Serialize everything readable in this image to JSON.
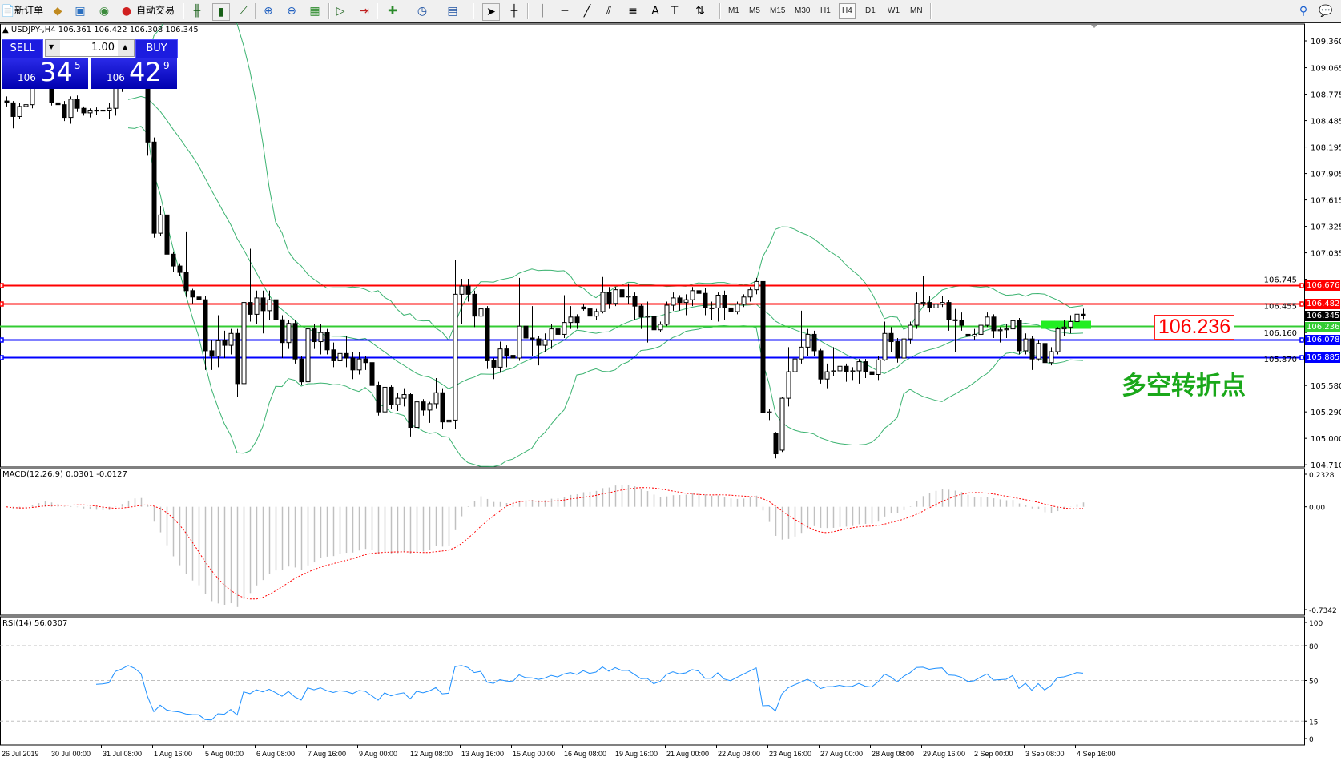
{
  "toolbar": {
    "new_order": "新订单",
    "auto_trading": "自动交易",
    "timeframes": [
      "M1",
      "M5",
      "M15",
      "M30",
      "H1",
      "H4",
      "D1",
      "W1",
      "MN"
    ],
    "active_timeframe": "H4",
    "icons": [
      "new-order-icon",
      "market-watch-icon",
      "navigator-icon",
      "signals-icon",
      "auto-trading-icon",
      "bar-chart-icon",
      "candlestick-icon",
      "line-chart-icon",
      "zoom-in-icon",
      "zoom-out-icon",
      "tile-windows-icon",
      "autoscroll-icon",
      "chart-shift-icon",
      "indicators-icon",
      "periods-icon",
      "templates-icon",
      "cursor-icon",
      "crosshair-icon",
      "vertical-line-icon",
      "horizontal-line-icon",
      "trendline-icon",
      "equidistant-channel-icon",
      "fibonacci-icon",
      "text-icon",
      "text-label-icon",
      "arrows-icon",
      "search-icon",
      "chat-icon"
    ]
  },
  "chart": {
    "header": "USDJPY-,H4  106.361 106.422 106.308 106.345",
    "trade_panel": {
      "sell_label": "SELL",
      "buy_label": "BUY",
      "volume": "1.00",
      "sell_price": {
        "prefix": "106",
        "big": "34",
        "sup": "5"
      },
      "buy_price": {
        "prefix": "106",
        "big": "42",
        "sup": "9"
      }
    },
    "annotation_price": "106.236",
    "annotation_text": "多空转折点",
    "macd_label": "MACD(12,26,9) 0.0301 -0.0127",
    "rsi_label": "RSI(14) 56.0307"
  },
  "colors": {
    "bull": "#ffffff",
    "bear": "#000000",
    "bands": "#3cb371",
    "macd_hist": "#c0c0c0",
    "macd_signal": "#ff0000",
    "rsi": "#1e90ff",
    "resistance": "#ff0000",
    "pivot": "#33cc33",
    "support": "#0000ff",
    "bid": "#c0c0c0",
    "pivot_zone": "#22ee22"
  },
  "chart_data": {
    "type": "candlestick",
    "symbol": "USDJPY-",
    "timeframe": "H4",
    "ylim": [
      104.71,
      109.36
    ],
    "price_ticks": [
      "109.360",
      "109.065",
      "108.775",
      "108.485",
      "108.195",
      "107.905",
      "107.615",
      "107.325",
      "107.035",
      "106.745",
      "106.455",
      "106.160",
      "105.870",
      "105.580",
      "105.290",
      "105.000",
      "104.710"
    ],
    "time_ticks": [
      "26 Jul 2019",
      "30 Jul 00:00",
      "31 Jul 08:00",
      "1 Aug 16:00",
      "5 Aug 00:00",
      "6 Aug 08:00",
      "7 Aug 16:00",
      "9 Aug 00:00",
      "12 Aug 08:00",
      "13 Aug 16:00",
      "15 Aug 00:00",
      "16 Aug 08:00",
      "19 Aug 16:00",
      "21 Aug 00:00",
      "22 Aug 08:00",
      "23 Aug 16:00",
      "27 Aug 00:00",
      "28 Aug 08:00",
      "29 Aug 16:00",
      "2 Sep 00:00",
      "3 Sep 08:00",
      "4 Sep 16:00"
    ],
    "hlines": [
      {
        "price": 106.676,
        "label": "106.676",
        "color": "#ff0000",
        "style": "resistance"
      },
      {
        "price": 106.482,
        "label": "106.482",
        "color": "#ff0000",
        "style": "resistance"
      },
      {
        "price": 106.345,
        "label": "106.345",
        "color": "#000000",
        "style": "bid"
      },
      {
        "price": 106.236,
        "label": "106.236",
        "color": "#33cc33",
        "style": "pivot"
      },
      {
        "price": 106.078,
        "label": "106.078",
        "color": "#0000ff",
        "style": "support"
      },
      {
        "price": 105.885,
        "label": "105.885",
        "color": "#0000ff",
        "style": "support"
      }
    ],
    "candles": [
      [
        108.7,
        108.75,
        108.64,
        108.68
      ],
      [
        108.68,
        108.7,
        108.4,
        108.53
      ],
      [
        108.53,
        108.68,
        108.5,
        108.64
      ],
      [
        108.64,
        108.7,
        108.58,
        108.66
      ],
      [
        108.66,
        108.96,
        108.62,
        108.92
      ],
      [
        108.92,
        108.98,
        108.86,
        108.9
      ],
      [
        108.9,
        108.98,
        108.86,
        108.92
      ],
      [
        108.92,
        108.94,
        108.65,
        108.68
      ],
      [
        108.68,
        108.72,
        108.58,
        108.66
      ],
      [
        108.66,
        108.7,
        108.48,
        108.52
      ],
      [
        108.52,
        108.75,
        108.45,
        108.72
      ],
      [
        108.72,
        108.76,
        108.58,
        108.62
      ],
      [
        108.62,
        108.64,
        108.54,
        108.57
      ],
      [
        108.57,
        108.62,
        108.52,
        108.6
      ],
      [
        108.6,
        108.63,
        108.55,
        108.59
      ],
      [
        108.59,
        108.62,
        108.56,
        108.6
      ],
      [
        108.6,
        108.68,
        108.5,
        108.62
      ],
      [
        108.62,
        108.95,
        108.54,
        108.88
      ],
      [
        108.88,
        109.0,
        108.8,
        108.95
      ],
      [
        108.95,
        109.1,
        108.9,
        109.05
      ],
      [
        109.05,
        109.15,
        108.95,
        109.0
      ],
      [
        109.0,
        109.05,
        108.85,
        108.9
      ],
      [
        108.9,
        108.92,
        108.1,
        108.25
      ],
      [
        108.25,
        108.3,
        107.2,
        107.25
      ],
      [
        107.25,
        107.55,
        107.22,
        107.45
      ],
      [
        107.45,
        107.48,
        106.82,
        107.02
      ],
      [
        107.02,
        107.05,
        106.82,
        106.89
      ],
      [
        106.89,
        106.92,
        106.78,
        106.82
      ],
      [
        106.82,
        107.27,
        106.55,
        106.62
      ],
      [
        106.62,
        106.64,
        106.48,
        106.55
      ],
      [
        106.55,
        106.57,
        106.5,
        106.52
      ],
      [
        106.52,
        106.56,
        105.75,
        105.96
      ],
      [
        105.96,
        106.08,
        105.75,
        105.9
      ],
      [
        105.9,
        106.35,
        105.78,
        106.07
      ],
      [
        106.07,
        106.18,
        105.88,
        106.02
      ],
      [
        106.02,
        106.2,
        105.92,
        106.15
      ],
      [
        106.15,
        106.2,
        105.45,
        105.6
      ],
      [
        105.6,
        106.52,
        105.55,
        106.49
      ],
      [
        106.49,
        107.08,
        106.28,
        106.36
      ],
      [
        106.36,
        106.62,
        106.25,
        106.54
      ],
      [
        106.54,
        106.62,
        106.15,
        106.4
      ],
      [
        106.4,
        106.62,
        106.3,
        106.52
      ],
      [
        106.52,
        106.55,
        106.22,
        106.3
      ],
      [
        106.3,
        106.35,
        105.88,
        106.05
      ],
      [
        106.05,
        106.3,
        105.98,
        106.26
      ],
      [
        106.26,
        106.3,
        105.82,
        105.87
      ],
      [
        105.87,
        105.9,
        105.58,
        105.62
      ],
      [
        105.62,
        106.22,
        105.45,
        106.2
      ],
      [
        106.2,
        106.25,
        105.98,
        106.06
      ],
      [
        106.06,
        106.25,
        105.92,
        106.16
      ],
      [
        106.16,
        106.2,
        105.92,
        105.97
      ],
      [
        105.97,
        106.05,
        105.78,
        105.85
      ],
      [
        105.85,
        106.12,
        105.8,
        105.93
      ],
      [
        105.93,
        106.12,
        105.78,
        105.88
      ],
      [
        105.88,
        105.95,
        105.65,
        105.75
      ],
      [
        105.75,
        105.95,
        105.7,
        105.87
      ],
      [
        105.87,
        105.9,
        105.75,
        105.83
      ],
      [
        105.83,
        105.85,
        105.5,
        105.58
      ],
      [
        105.58,
        105.62,
        105.25,
        105.29
      ],
      [
        105.29,
        105.62,
        105.25,
        105.56
      ],
      [
        105.56,
        105.58,
        105.32,
        105.37
      ],
      [
        105.37,
        105.5,
        105.3,
        105.44
      ],
      [
        105.44,
        105.55,
        105.35,
        105.48
      ],
      [
        105.48,
        105.5,
        105.02,
        105.12
      ],
      [
        105.12,
        105.45,
        105.1,
        105.4
      ],
      [
        105.4,
        105.43,
        105.25,
        105.31
      ],
      [
        105.31,
        105.4,
        105.17,
        105.38
      ],
      [
        105.38,
        105.66,
        105.33,
        105.5
      ],
      [
        105.5,
        105.55,
        105.1,
        105.18
      ],
      [
        105.18,
        105.35,
        105.05,
        105.2
      ],
      [
        105.2,
        106.96,
        105.1,
        106.58
      ],
      [
        106.58,
        106.75,
        106.25,
        106.67
      ],
      [
        106.67,
        106.75,
        106.5,
        106.58
      ],
      [
        106.58,
        106.62,
        106.22,
        106.34
      ],
      [
        106.34,
        106.62,
        106.3,
        106.42
      ],
      [
        106.42,
        106.45,
        105.76,
        105.85
      ],
      [
        105.85,
        105.88,
        105.65,
        105.78
      ],
      [
        105.78,
        106.06,
        105.72,
        105.98
      ],
      [
        105.98,
        106.02,
        105.78,
        105.91
      ],
      [
        105.91,
        106.1,
        105.82,
        105.88
      ],
      [
        105.88,
        106.76,
        105.85,
        106.23
      ],
      [
        106.23,
        106.45,
        105.9,
        106.1
      ],
      [
        106.1,
        106.45,
        105.9,
        106.09
      ],
      [
        106.09,
        106.12,
        105.8,
        106.02
      ],
      [
        106.02,
        106.15,
        105.95,
        106.08
      ],
      [
        106.08,
        106.25,
        105.98,
        106.2
      ],
      [
        106.2,
        106.26,
        106.05,
        106.14
      ],
      [
        106.14,
        106.57,
        106.1,
        106.27
      ],
      [
        106.27,
        106.45,
        106.2,
        106.33
      ],
      [
        106.33,
        106.36,
        106.2,
        106.27
      ],
      [
        106.44,
        106.47,
        106.4,
        106.42
      ],
      [
        106.42,
        106.44,
        106.25,
        106.34
      ],
      [
        106.34,
        106.42,
        106.3,
        106.39
      ],
      [
        106.39,
        106.77,
        106.37,
        106.6
      ],
      [
        106.6,
        106.66,
        106.42,
        106.48
      ],
      [
        106.48,
        106.66,
        106.45,
        106.63
      ],
      [
        106.63,
        106.7,
        106.52,
        106.55
      ],
      [
        106.55,
        106.7,
        106.47,
        106.56
      ],
      [
        106.56,
        106.6,
        106.3,
        106.45
      ],
      [
        106.45,
        106.47,
        106.2,
        106.33
      ],
      [
        106.33,
        106.5,
        106.05,
        106.34
      ],
      [
        106.34,
        106.36,
        106.15,
        106.19
      ],
      [
        106.19,
        106.28,
        106.17,
        106.25
      ],
      [
        106.25,
        106.5,
        106.23,
        106.46
      ],
      [
        106.46,
        106.6,
        106.4,
        106.54
      ],
      [
        106.54,
        106.57,
        106.4,
        106.49
      ],
      [
        106.49,
        106.58,
        106.35,
        106.52
      ],
      [
        106.52,
        106.66,
        106.45,
        106.62
      ],
      [
        106.62,
        106.65,
        106.55,
        106.59
      ],
      [
        106.59,
        106.65,
        106.35,
        106.43
      ],
      [
        106.43,
        106.5,
        106.3,
        106.43
      ],
      [
        106.43,
        106.6,
        106.28,
        106.57
      ],
      [
        106.57,
        106.62,
        106.3,
        106.43
      ],
      [
        106.43,
        106.46,
        106.35,
        106.39
      ],
      [
        106.39,
        106.5,
        106.36,
        106.47
      ],
      [
        106.47,
        106.58,
        106.44,
        106.55
      ],
      [
        106.55,
        106.66,
        106.5,
        106.63
      ],
      [
        106.63,
        106.76,
        106.58,
        106.72
      ],
      [
        106.72,
        106.75,
        105.27,
        105.28
      ],
      [
        105.28,
        105.32,
        105.2,
        105.29
      ],
      [
        105.05,
        105.07,
        104.78,
        104.83
      ],
      [
        104.87,
        105.45,
        104.85,
        105.44
      ],
      [
        105.44,
        106.0,
        105.35,
        105.73
      ],
      [
        105.73,
        106.05,
        105.7,
        105.87
      ],
      [
        105.87,
        106.4,
        105.82,
        106.0
      ],
      [
        106.0,
        106.2,
        105.9,
        106.14
      ],
      [
        106.14,
        106.18,
        105.9,
        105.96
      ],
      [
        105.96,
        105.98,
        105.6,
        105.65
      ],
      [
        105.65,
        105.82,
        105.55,
        105.73
      ],
      [
        105.73,
        106.0,
        105.68,
        105.74
      ],
      [
        105.74,
        106.07,
        105.65,
        105.79
      ],
      [
        105.79,
        105.82,
        105.62,
        105.73
      ],
      [
        105.73,
        105.78,
        105.64,
        105.74
      ],
      [
        105.74,
        105.87,
        105.6,
        105.84
      ],
      [
        105.84,
        105.87,
        105.66,
        105.73
      ],
      [
        105.73,
        105.76,
        105.63,
        105.7
      ],
      [
        105.7,
        105.9,
        105.64,
        105.86
      ],
      [
        105.86,
        106.28,
        105.85,
        106.15
      ],
      [
        106.15,
        106.22,
        105.95,
        106.06
      ],
      [
        106.06,
        106.1,
        105.83,
        105.88
      ],
      [
        105.88,
        106.12,
        105.86,
        106.09
      ],
      [
        106.09,
        106.28,
        106.04,
        106.24
      ],
      [
        106.24,
        106.6,
        106.2,
        106.48
      ],
      [
        106.48,
        106.78,
        106.45,
        106.49
      ],
      [
        106.49,
        106.56,
        106.38,
        106.43
      ],
      [
        106.43,
        106.55,
        106.35,
        106.47
      ],
      [
        106.47,
        106.56,
        106.44,
        106.49
      ],
      [
        106.49,
        106.52,
        106.18,
        106.3
      ],
      [
        106.3,
        106.42,
        105.95,
        106.29
      ],
      [
        106.29,
        106.38,
        106.18,
        106.24
      ],
      [
        106.14,
        106.17,
        106.05,
        106.12
      ],
      [
        106.12,
        106.2,
        106.08,
        106.14
      ],
      [
        106.14,
        106.29,
        106.08,
        106.24
      ],
      [
        106.24,
        106.38,
        106.22,
        106.33
      ],
      [
        106.33,
        106.36,
        106.1,
        106.18
      ],
      [
        106.18,
        106.22,
        106.05,
        106.19
      ],
      [
        106.19,
        106.25,
        106.1,
        106.2
      ],
      [
        106.2,
        106.4,
        106.18,
        106.29
      ],
      [
        106.29,
        106.32,
        105.92,
        105.96
      ],
      [
        105.96,
        106.15,
        105.92,
        106.09
      ],
      [
        106.09,
        106.12,
        105.75,
        105.87
      ],
      [
        105.87,
        106.08,
        105.85,
        106.04
      ],
      [
        106.04,
        106.08,
        105.8,
        105.83
      ],
      [
        105.83,
        106.0,
        105.8,
        105.95
      ],
      [
        105.95,
        106.22,
        105.92,
        106.2
      ],
      [
        106.2,
        106.3,
        106.12,
        106.22
      ],
      [
        106.22,
        106.35,
        106.15,
        106.28
      ],
      [
        106.28,
        106.46,
        106.25,
        106.361
      ],
      [
        106.361,
        106.422,
        106.308,
        106.345
      ]
    ],
    "indicators": {
      "bollinger": {
        "period": 20,
        "deviation": 2
      },
      "macd": {
        "fast": 12,
        "slow": 26,
        "signal": 9,
        "ylim": [
          -0.7342,
          0.2328
        ],
        "ticks": [
          "0.2328",
          "0.00",
          "-0.7342"
        ]
      },
      "rsi": {
        "period": 14,
        "levels": [
          80,
          50,
          15
        ],
        "ticks": [
          "100",
          "80",
          "50",
          "15",
          "0"
        ]
      }
    }
  }
}
